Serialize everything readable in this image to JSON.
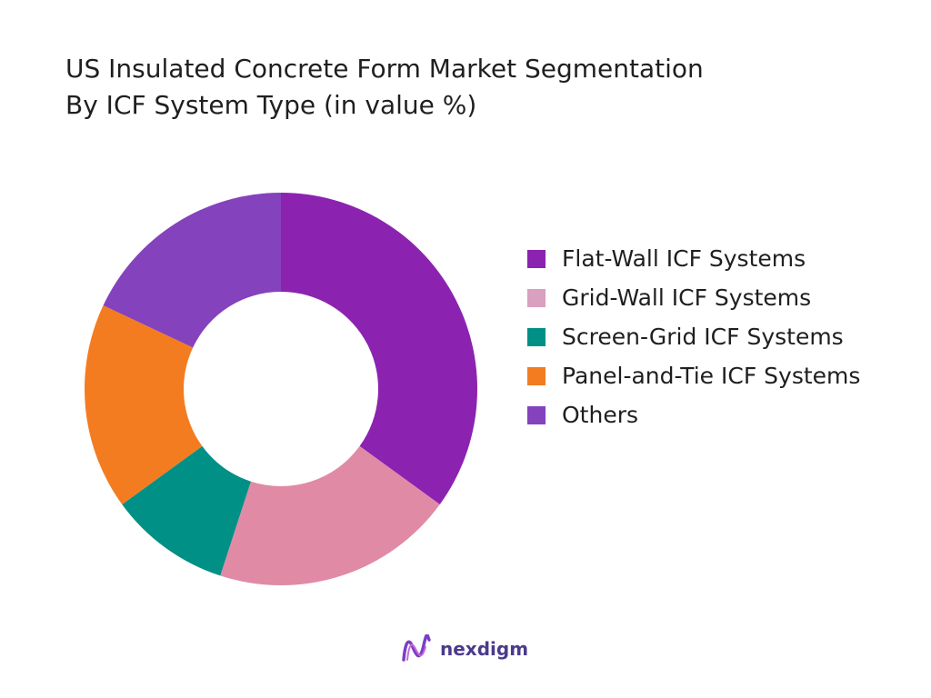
{
  "title": {
    "line1": "US Insulated Concrete Form Market Segmentation",
    "line2": "By ICF System Type (in value %)"
  },
  "chart_data": {
    "type": "pie",
    "style": "donut",
    "title": "US Insulated Concrete Form Market Segmentation By ICF System Type (in value %)",
    "categories": [
      "Flat-Wall ICF Systems",
      "Grid-Wall ICF Systems",
      "Screen-Grid ICF Systems",
      "Panel-and-Tie ICF Systems",
      "Others"
    ],
    "values": [
      35,
      20,
      10,
      17,
      18
    ],
    "colors": [
      "#8b23b0",
      "#e08aa6",
      "#009086",
      "#f47c20",
      "#8442bd"
    ],
    "legend_placement": "right"
  },
  "legend": {
    "items": [
      {
        "label": "Flat-Wall ICF Systems",
        "color": "#8b23b0"
      },
      {
        "label": "Grid-Wall ICF Systems",
        "color": "#d9a0c0"
      },
      {
        "label": "Screen-Grid ICF Systems",
        "color": "#009086"
      },
      {
        "label": "Panel-and-Tie ICF Systems",
        "color": "#f47c20"
      },
      {
        "label": "Others",
        "color": "#8442bd"
      }
    ]
  },
  "brand": {
    "name": "nexdigm",
    "icon": "nexdigm-logo-icon"
  }
}
